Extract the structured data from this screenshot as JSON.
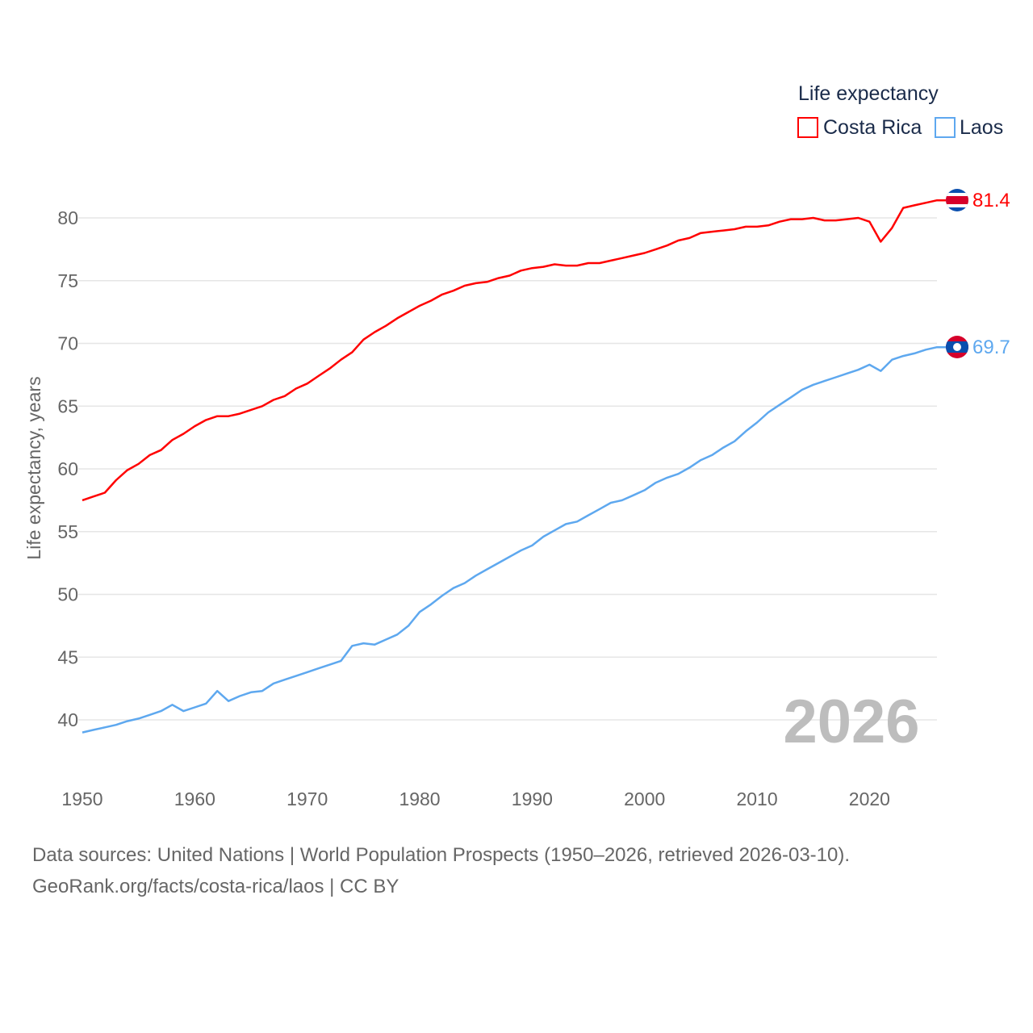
{
  "chart_data": {
    "type": "line",
    "title": "Life expectancy",
    "ylabel": "Life expectancy, years",
    "xlabel": "",
    "xlim": [
      1950,
      2026
    ],
    "ylim": [
      40,
      80
    ],
    "y_ticks": [
      40,
      45,
      50,
      55,
      60,
      65,
      70,
      75,
      80
    ],
    "x_ticks": [
      1950,
      1960,
      1970,
      1980,
      1990,
      2000,
      2010,
      2020
    ],
    "grid": true,
    "legend_placement": "top-right",
    "year_watermark": "2026",
    "x_start": 1950,
    "series": [
      {
        "name": "Costa Rica",
        "color": "#ff0000",
        "end_label": "81.4",
        "flag": "costa-rica-flag",
        "values": [
          57.5,
          57.8,
          58.1,
          59.1,
          59.9,
          60.4,
          61.1,
          61.5,
          62.3,
          62.8,
          63.4,
          63.9,
          64.2,
          64.2,
          64.4,
          64.7,
          65.0,
          65.5,
          65.8,
          66.4,
          66.8,
          67.4,
          68.0,
          68.7,
          69.3,
          70.3,
          70.9,
          71.4,
          72.0,
          72.5,
          73.0,
          73.4,
          73.9,
          74.2,
          74.6,
          74.8,
          74.9,
          75.2,
          75.4,
          75.8,
          76.0,
          76.1,
          76.3,
          76.2,
          76.2,
          76.4,
          76.4,
          76.6,
          76.8,
          77.0,
          77.2,
          77.5,
          77.8,
          78.2,
          78.4,
          78.8,
          78.9,
          79.0,
          79.1,
          79.3,
          79.3,
          79.4,
          79.7,
          79.9,
          79.9,
          80.0,
          79.8,
          79.8,
          79.9,
          80.0,
          79.7,
          78.1,
          79.2,
          80.8,
          81.0,
          81.2,
          81.4
        ]
      },
      {
        "name": "Laos",
        "color": "#5ea8ef",
        "end_label": "69.7",
        "flag": "laos-flag",
        "values": [
          39.0,
          39.2,
          39.4,
          39.6,
          39.9,
          40.1,
          40.4,
          40.7,
          41.2,
          40.7,
          41.0,
          41.3,
          42.3,
          41.5,
          41.9,
          42.2,
          42.3,
          42.9,
          43.2,
          43.5,
          43.8,
          44.1,
          44.4,
          44.7,
          45.9,
          46.1,
          46.0,
          46.4,
          46.8,
          47.5,
          48.6,
          49.2,
          49.9,
          50.5,
          50.9,
          51.5,
          52.0,
          52.5,
          53.0,
          53.5,
          53.9,
          54.6,
          55.1,
          55.6,
          55.8,
          56.3,
          56.8,
          57.3,
          57.5,
          57.9,
          58.3,
          58.9,
          59.3,
          59.6,
          60.1,
          60.7,
          61.1,
          61.7,
          62.2,
          63.0,
          63.7,
          64.5,
          65.1,
          65.7,
          66.3,
          66.7,
          67.0,
          67.3,
          67.6,
          67.9,
          68.3,
          67.8,
          68.7,
          69.0,
          69.2,
          69.5,
          69.7
        ]
      }
    ]
  },
  "footer": {
    "line1": "Data sources: United Nations | World Population Prospects (1950–2026, retrieved 2026-03-10).",
    "line2": "GeoRank.org/facts/costa-rica/laos | CC BY"
  }
}
